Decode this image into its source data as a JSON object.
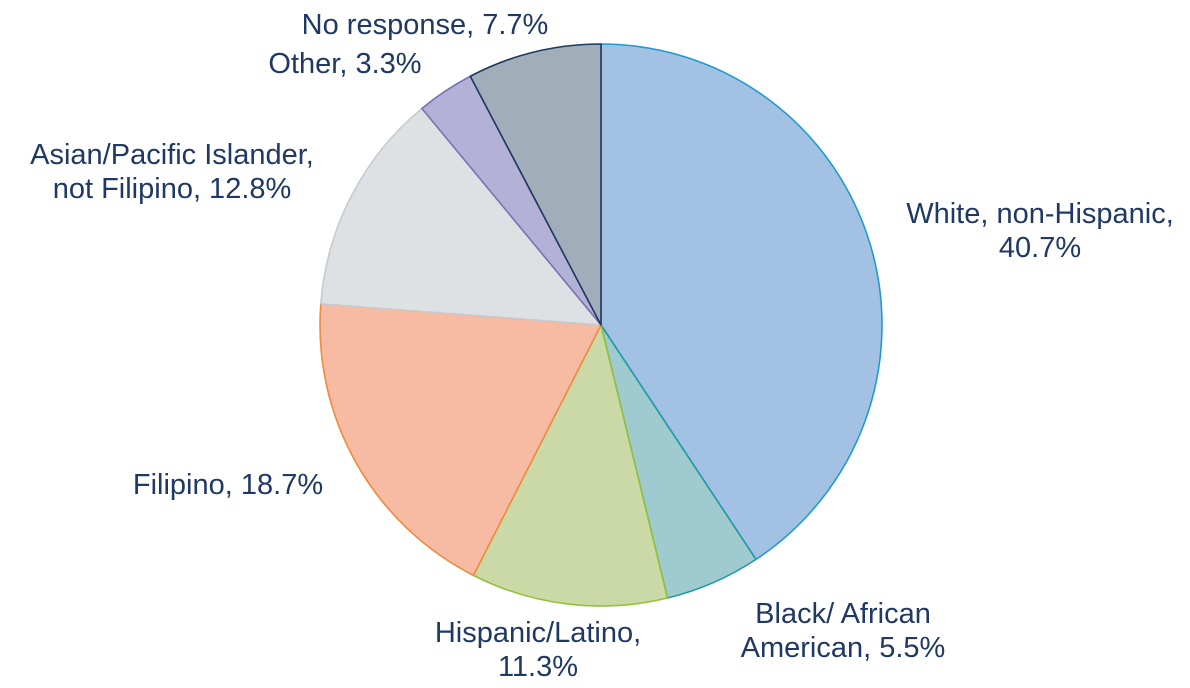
{
  "chart_data": {
    "type": "pie",
    "title": "",
    "start_angle_deg": 0,
    "direction": "clockwise",
    "slices": [
      {
        "name": "White, non-Hispanic",
        "value": 40.7,
        "label_lines": [
          "White, non-Hispanic,",
          "40.7%"
        ],
        "fill": "#a3c1e3",
        "stroke": "#1f9bd0"
      },
      {
        "name": "Black/ African American",
        "value": 5.5,
        "label_lines": [
          "Black/ African",
          "American, 5.5%"
        ],
        "fill": "#9fcad0",
        "stroke": "#1f9aa6"
      },
      {
        "name": "Hispanic/Latino",
        "value": 11.3,
        "label_lines": [
          "Hispanic/Latino,",
          "11.3%"
        ],
        "fill": "#cbd9a6",
        "stroke": "#94c13a"
      },
      {
        "name": "Filipino",
        "value": 18.7,
        "label_lines": [
          "Filipino, 18.7%"
        ],
        "fill": "#f7bba4",
        "stroke": "#f08a3c"
      },
      {
        "name": "Asian/Pacific Islander, not Filipino",
        "value": 12.8,
        "label_lines": [
          "Asian/Pacific Islander,",
          "not Filipino, 12.8%"
        ],
        "fill": "#dde1e4",
        "stroke": "#c7cbcf"
      },
      {
        "name": "Other",
        "value": 3.3,
        "label_lines": [
          "Other, 3.3%"
        ],
        "fill": "#b3b2d6",
        "stroke": "#7a72b8"
      },
      {
        "name": "No response",
        "value": 7.7,
        "label_lines": [
          "No response, 7.7%"
        ],
        "fill": "#a2adba",
        "stroke": "#1a3a5e"
      }
    ]
  }
}
